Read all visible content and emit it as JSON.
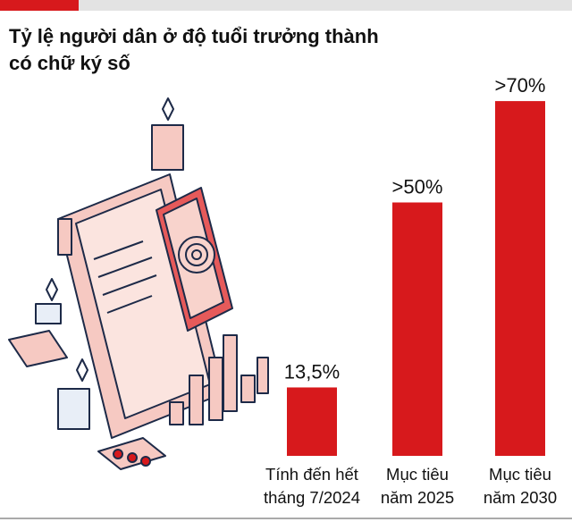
{
  "chart_data": {
    "type": "bar",
    "title": [
      "Tỷ lệ người dân ở độ tuổi trưởng thành",
      "có chữ ký số"
    ],
    "categories": [
      [
        "Tính đến hết",
        "tháng 7/2024"
      ],
      [
        "Mục tiêu",
        "năm 2025"
      ],
      [
        "Mục tiêu",
        "năm 2030"
      ]
    ],
    "values": [
      13.5,
      50,
      70
    ],
    "value_labels": [
      "13,5%",
      ">50%",
      ">70%"
    ],
    "color": "#d7191c"
  }
}
